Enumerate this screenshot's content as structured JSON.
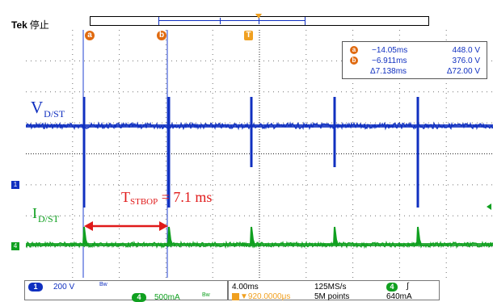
{
  "header": {
    "brand": "Tek",
    "acquisition_status": "停止"
  },
  "cursors": {
    "a": {
      "label": "a",
      "time": "−14.05ms",
      "value": "448.0 V"
    },
    "b": {
      "label": "b",
      "time": "−6.911ms",
      "value": "376.0 V"
    },
    "delta": {
      "time": "Δ7.138ms",
      "value": "Δ72.00 V"
    }
  },
  "trigger_marker_label": "T",
  "channel_markers": {
    "ch1": {
      "label": "1",
      "color": "#1030c0"
    },
    "ch4": {
      "label": "4",
      "color": "#10a020"
    }
  },
  "traces": {
    "vds": {
      "main": "V",
      "sub": "D/ST",
      "color": "#1030c0"
    },
    "ids": {
      "main": "I",
      "sub": "D/ST",
      "color": "#10a020"
    }
  },
  "annotation": {
    "main": "T",
    "sub": "STBOP",
    "rest": " = 7.1 ms",
    "color": "#e01a1a"
  },
  "bottom": {
    "ch1_num": "1",
    "ch1_scale": "200 V",
    "ch1_bw": "Bw",
    "ch4_num": "4",
    "ch4_scale": "500mA",
    "ch4_bw": "Bw",
    "timebase": "4.00ms",
    "sample_rate": "125MS/s",
    "trig_offset": "▼920.0000μs",
    "record_length": "5M points",
    "trig_ch": "4",
    "trig_slope": "∫",
    "trig_level": "640mA"
  },
  "colors": {
    "ch1": "#1030c0",
    "ch4": "#10a020",
    "cursor": "#e06a10",
    "grid": "#000000"
  }
}
